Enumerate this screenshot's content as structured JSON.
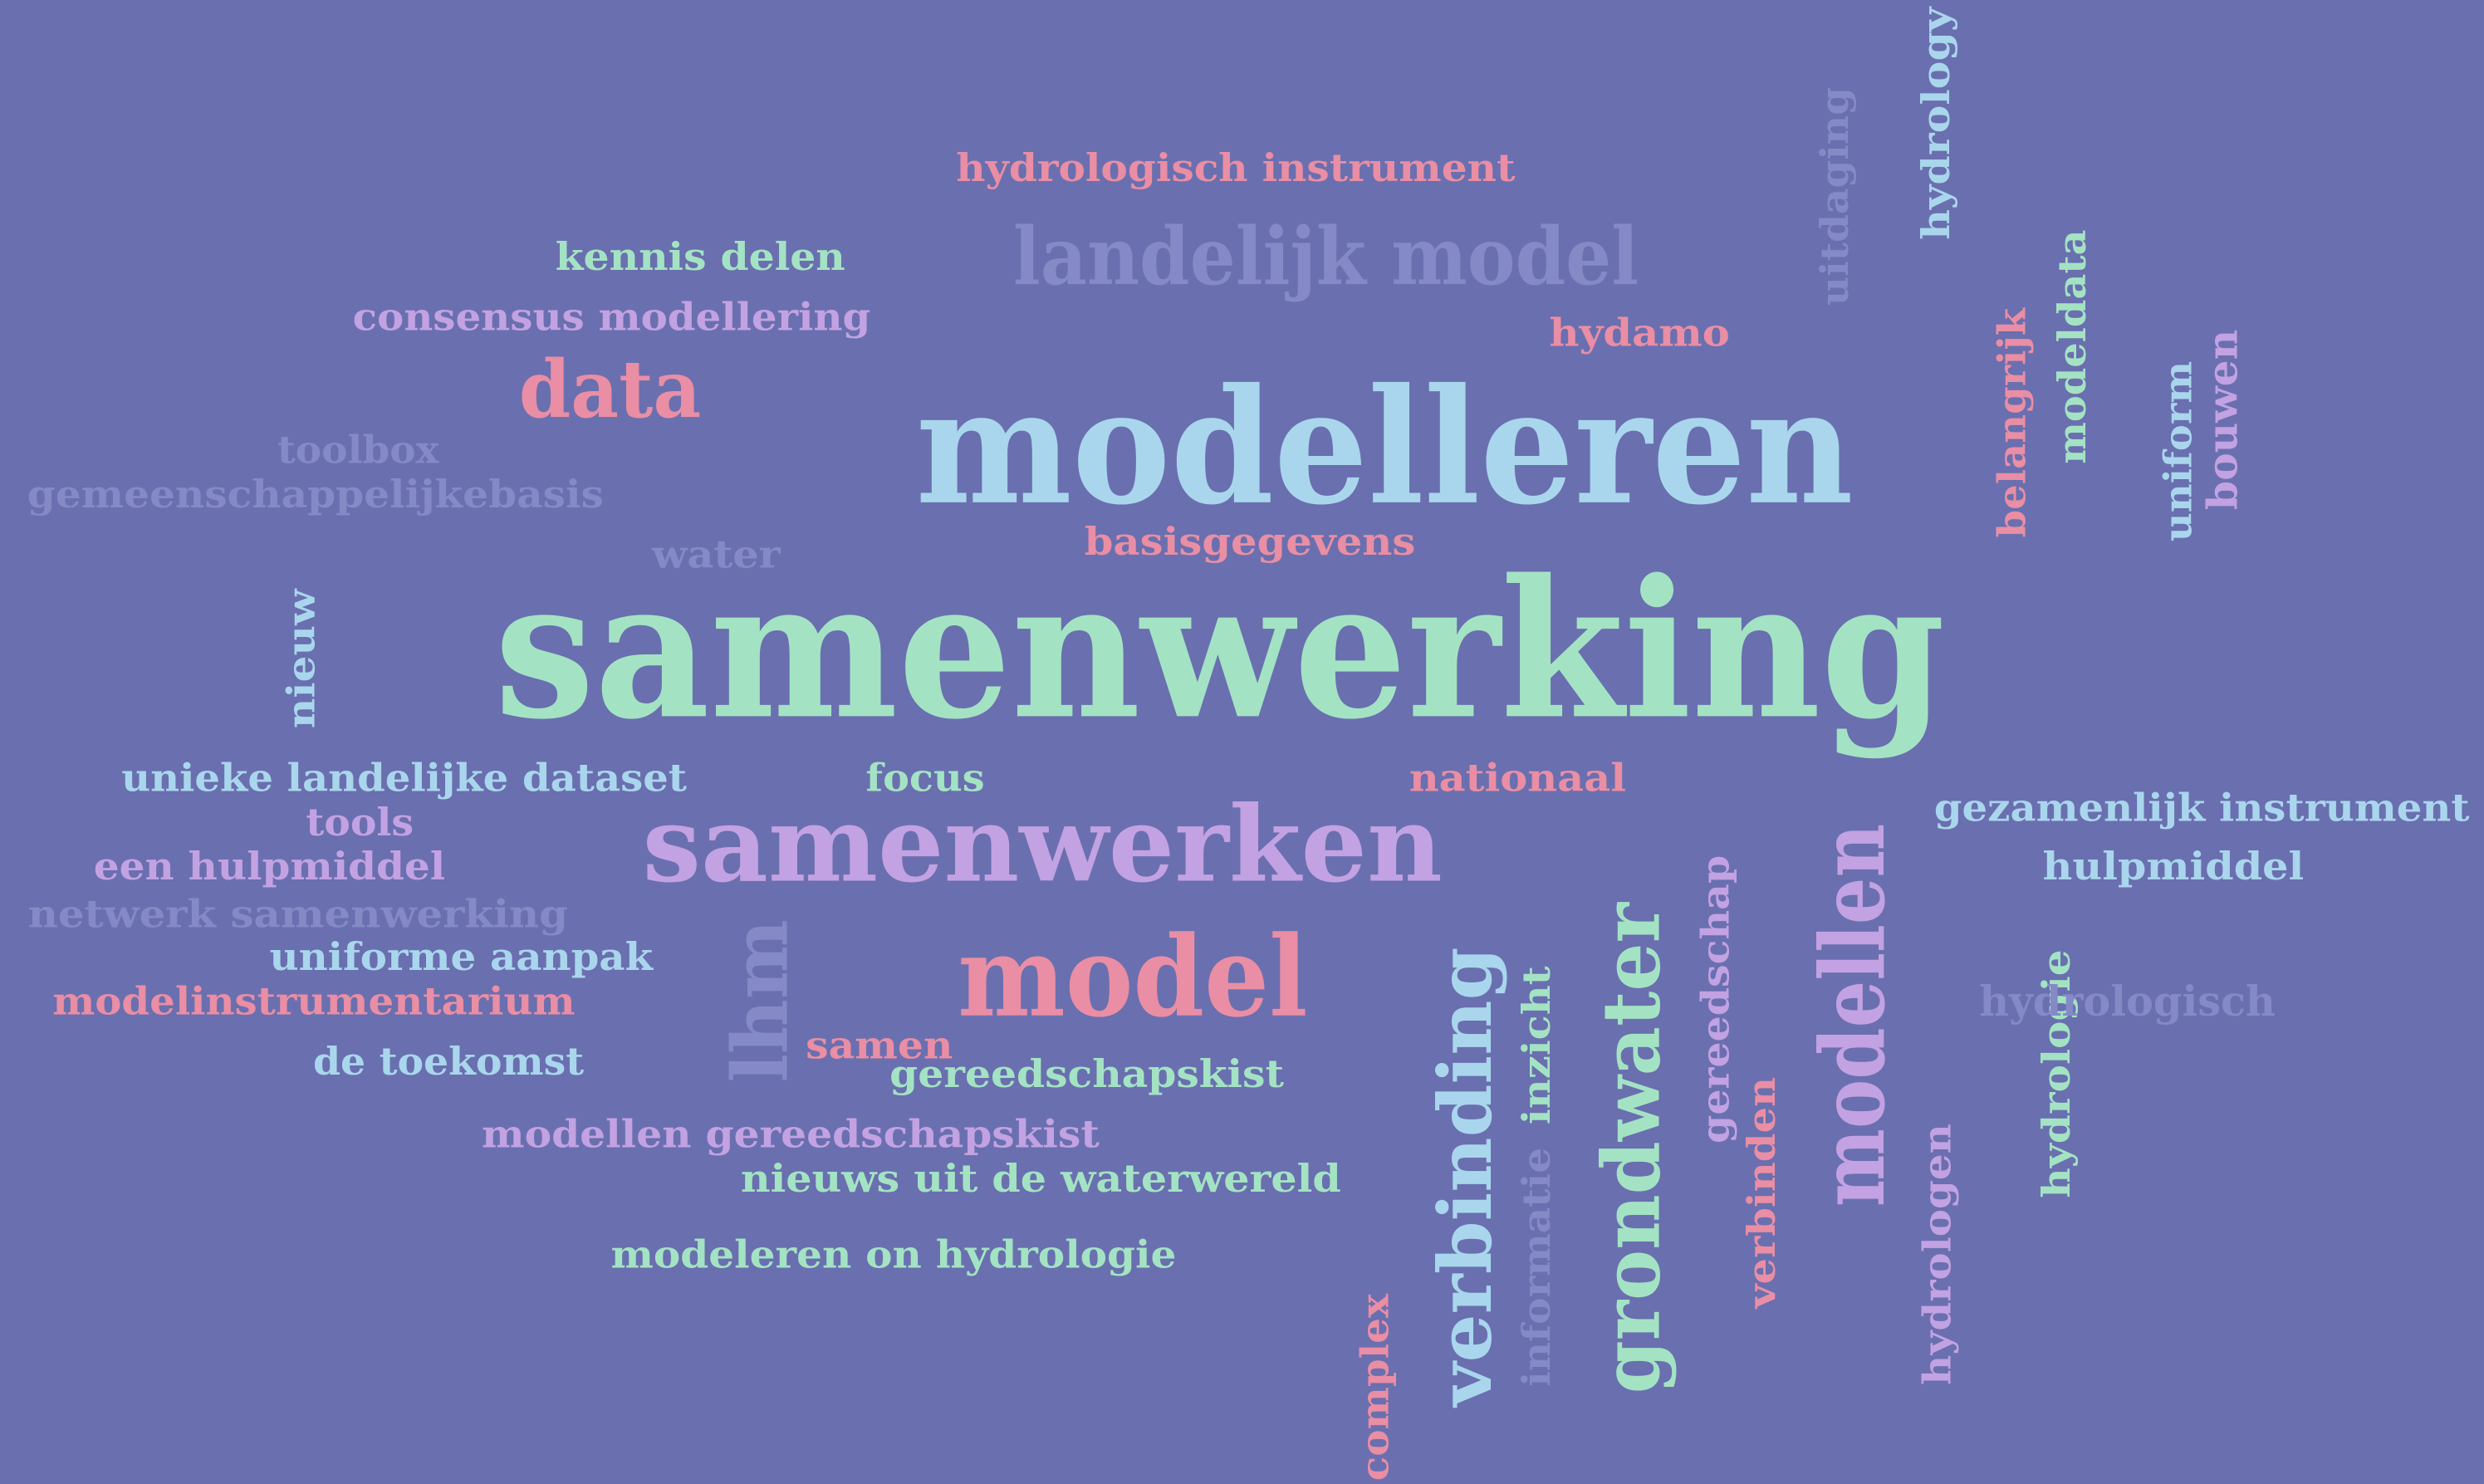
{
  "words": [
    {
      "text": "hydrologisch instrument"
    },
    {
      "text": "kennis delen"
    },
    {
      "text": "landelijk model"
    },
    {
      "text": "consensus modellering"
    },
    {
      "text": "hydamo"
    },
    {
      "text": "data"
    },
    {
      "text": "modelleren"
    },
    {
      "text": "toolbox"
    },
    {
      "text": "gemeenschappelijkebasis"
    },
    {
      "text": "water"
    },
    {
      "text": "basisgegevens"
    },
    {
      "text": "samenwerking"
    },
    {
      "text": "nieuw"
    },
    {
      "text": "unieke landelijke dataset"
    },
    {
      "text": "focus"
    },
    {
      "text": "nationaal"
    },
    {
      "text": "tools"
    },
    {
      "text": "samenwerken"
    },
    {
      "text": "een hulpmiddel"
    },
    {
      "text": "netwerk samenwerking"
    },
    {
      "text": "uniforme aanpak"
    },
    {
      "text": "modelinstrumentarium"
    },
    {
      "text": "model"
    },
    {
      "text": "lhm"
    },
    {
      "text": "de toekomst"
    },
    {
      "text": "samen"
    },
    {
      "text": "gereedschapskist"
    },
    {
      "text": "modellen gereedschapskist"
    },
    {
      "text": "nieuws uit de waterwereld"
    },
    {
      "text": "modeleren on hydrologie"
    },
    {
      "text": "verbinding"
    },
    {
      "text": "inzicht"
    },
    {
      "text": "informatie"
    },
    {
      "text": "complex"
    },
    {
      "text": "grondwater"
    },
    {
      "text": "gereedschap"
    },
    {
      "text": "verbinden"
    },
    {
      "text": "modellen"
    },
    {
      "text": "hydrologen"
    },
    {
      "text": "hydrologie"
    },
    {
      "text": "hydrologisch"
    },
    {
      "text": "gezamenlijk instrument"
    },
    {
      "text": "hulpmiddel"
    },
    {
      "text": "belangrijk"
    },
    {
      "text": "modeldata"
    },
    {
      "text": "uniform"
    },
    {
      "text": "bouwen"
    },
    {
      "text": "uitdaging"
    },
    {
      "text": "hydrology"
    }
  ]
}
